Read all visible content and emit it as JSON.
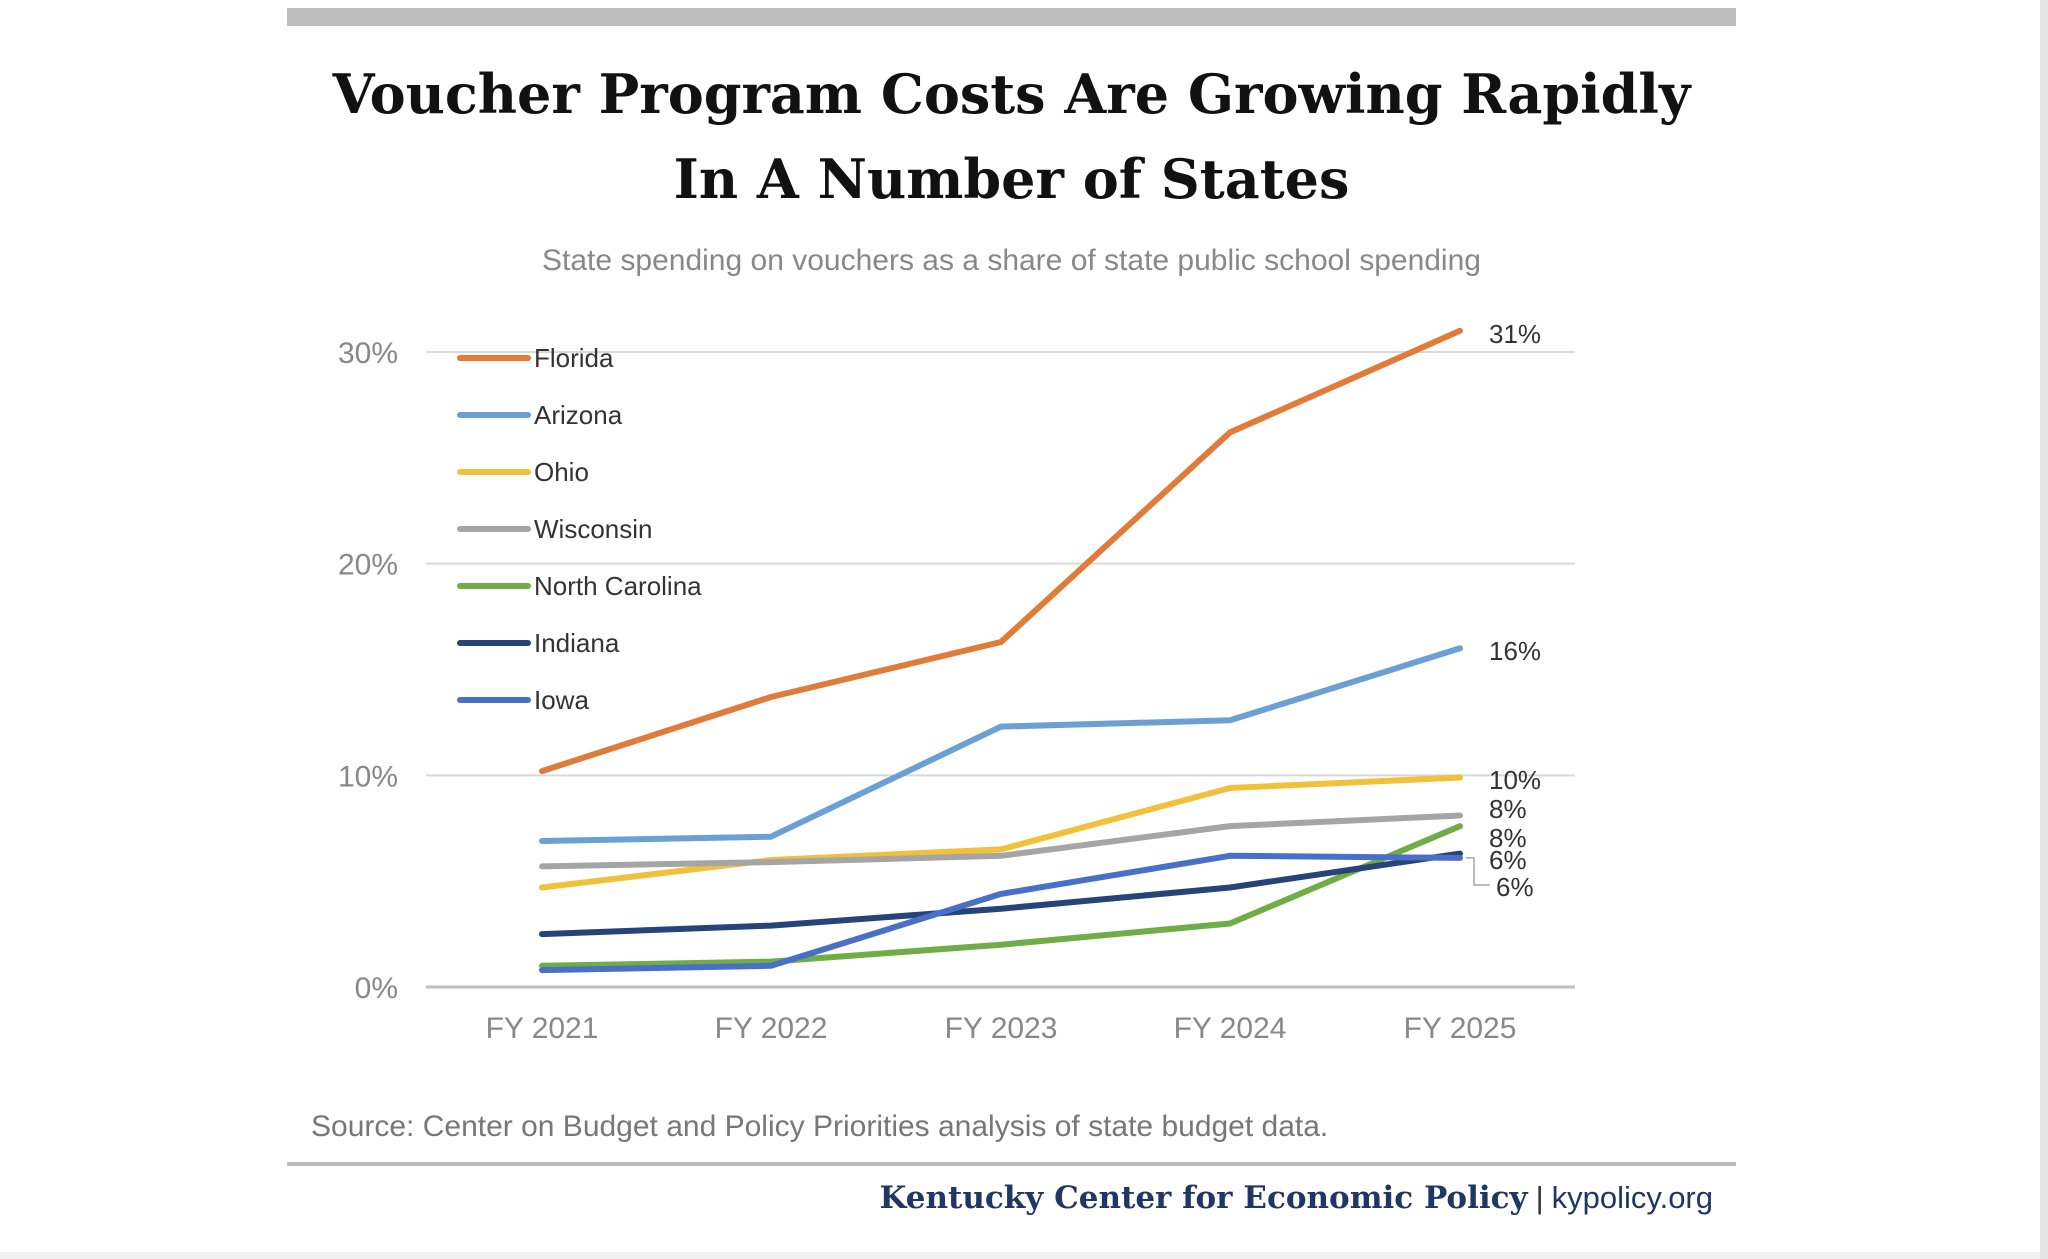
{
  "chart_data": {
    "type": "line",
    "title_lines": [
      "Voucher Program Costs Are Growing Rapidly",
      "In A Number of States"
    ],
    "subtitle": "State spending on vouchers as a share of state public school spending",
    "categories": [
      "FY 2021",
      "FY 2022",
      "FY 2023",
      "FY 2024",
      "FY 2025"
    ],
    "ylim": [
      0,
      30
    ],
    "yticks": [
      0,
      10,
      20,
      30
    ],
    "ytick_labels": [
      "0%",
      "10%",
      "20%",
      "30%"
    ],
    "grid": true,
    "legend_position": "top-left",
    "series": [
      {
        "name": "Florida",
        "color": "#e07b39",
        "values": [
          10.2,
          13.7,
          16.3,
          26.2,
          31.0
        ],
        "end_label": "31%"
      },
      {
        "name": "Arizona",
        "color": "#6c9fd4",
        "values": [
          6.9,
          7.1,
          12.3,
          12.6,
          16.0
        ],
        "end_label": "16%"
      },
      {
        "name": "Ohio",
        "color": "#f2c13c",
        "values": [
          4.7,
          6.0,
          6.5,
          9.4,
          9.9
        ],
        "end_label": "10%"
      },
      {
        "name": "Wisconsin",
        "color": "#a5a5a5",
        "values": [
          5.7,
          5.9,
          6.2,
          7.6,
          8.1
        ],
        "end_label": "8%"
      },
      {
        "name": "North Carolina",
        "color": "#70ad47",
        "values": [
          1.0,
          1.2,
          2.0,
          3.0,
          7.6
        ],
        "end_label": "8%"
      },
      {
        "name": "Indiana",
        "color": "#264478",
        "values": [
          2.5,
          2.9,
          3.7,
          4.7,
          6.3
        ],
        "end_label": "6%"
      },
      {
        "name": "Iowa",
        "color": "#4a6fc7",
        "values": [
          0.8,
          1.0,
          4.4,
          6.2,
          6.1
        ],
        "end_label": "6%"
      }
    ]
  },
  "source": "Source: Center on Budget and Policy Priorities analysis of state budget data.",
  "footer": {
    "org": "Kentucky Center for Economic Policy",
    "separator": "|",
    "url": "kypolicy.org"
  }
}
